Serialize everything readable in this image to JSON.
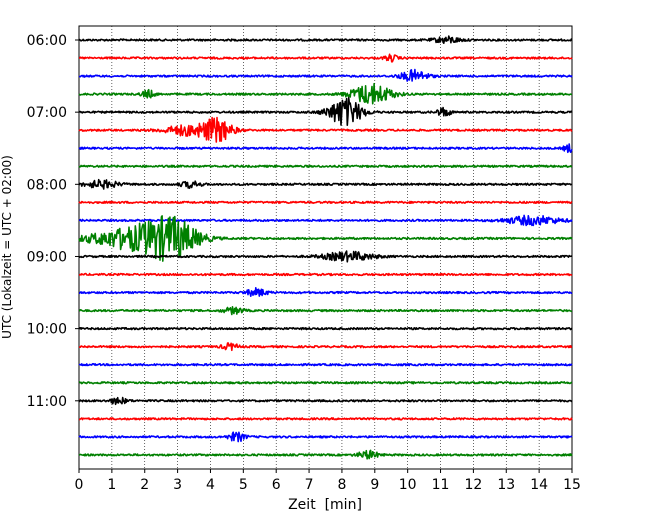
{
  "chart_data": {
    "type": "line",
    "title": "",
    "xlabel": "Zeit  [min]",
    "ylabel": "UTC (Lokalzeit = UTC + 02:00)",
    "xlim": [
      0,
      15
    ],
    "x_ticks": [
      "0",
      "1",
      "2",
      "3",
      "4",
      "5",
      "6",
      "7",
      "8",
      "9",
      "10",
      "11",
      "12",
      "13",
      "14",
      "15"
    ],
    "y_tick_labels": [
      "06:00",
      "07:00",
      "08:00",
      "09:00",
      "10:00",
      "11:00"
    ],
    "start_time": "06:00",
    "trace_interval_min": 15,
    "trace_count": 24,
    "grid": {
      "x_vertical_dotted": true
    },
    "trace_colors": [
      "#000000",
      "#ff0000",
      "#0000ff",
      "#008000"
    ],
    "events": [
      {
        "trace_start": "06:00",
        "minute": 11.2,
        "amplitude": 0.25,
        "duration_min": 0.8
      },
      {
        "trace_start": "06:15",
        "minute": 9.5,
        "amplitude": 0.25,
        "duration_min": 0.4
      },
      {
        "trace_start": "06:30",
        "minute": 10.2,
        "amplitude": 0.45,
        "duration_min": 0.8
      },
      {
        "trace_start": "06:45",
        "minute": 2.1,
        "amplitude": 0.3,
        "duration_min": 0.4
      },
      {
        "trace_start": "06:45",
        "minute": 8.9,
        "amplitude": 0.8,
        "duration_min": 1.2
      },
      {
        "trace_start": "07:00",
        "minute": 8.1,
        "amplitude": 1.1,
        "duration_min": 1.0
      },
      {
        "trace_start": "07:00",
        "minute": 11.1,
        "amplitude": 0.35,
        "duration_min": 0.4
      },
      {
        "trace_start": "07:15",
        "minute": 3.3,
        "amplitude": 0.4,
        "duration_min": 1.4
      },
      {
        "trace_start": "07:15",
        "minute": 4.2,
        "amplitude": 0.9,
        "duration_min": 0.9
      },
      {
        "trace_start": "07:30",
        "minute": 14.9,
        "amplitude": 0.3,
        "duration_min": 0.3
      },
      {
        "trace_start": "08:00",
        "minute": 0.7,
        "amplitude": 0.3,
        "duration_min": 1.0
      },
      {
        "trace_start": "08:00",
        "minute": 3.4,
        "amplitude": 0.25,
        "duration_min": 0.6
      },
      {
        "trace_start": "08:30",
        "minute": 13.8,
        "amplitude": 0.35,
        "duration_min": 1.6
      },
      {
        "trace_start": "08:45",
        "minute": 1.6,
        "amplitude": 0.8,
        "duration_min": 2.5
      },
      {
        "trace_start": "08:45",
        "minute": 2.8,
        "amplitude": 1.4,
        "duration_min": 1.6
      },
      {
        "trace_start": "09:00",
        "minute": 8.2,
        "amplitude": 0.35,
        "duration_min": 1.5
      },
      {
        "trace_start": "09:30",
        "minute": 5.4,
        "amplitude": 0.3,
        "duration_min": 0.6
      },
      {
        "trace_start": "09:45",
        "minute": 4.7,
        "amplitude": 0.25,
        "duration_min": 0.6
      },
      {
        "trace_start": "10:15",
        "minute": 4.6,
        "amplitude": 0.25,
        "duration_min": 0.5
      },
      {
        "trace_start": "11:00",
        "minute": 1.2,
        "amplitude": 0.25,
        "duration_min": 0.5
      },
      {
        "trace_start": "11:30",
        "minute": 4.8,
        "amplitude": 0.35,
        "duration_min": 0.5
      },
      {
        "trace_start": "11:45",
        "minute": 8.8,
        "amplitude": 0.3,
        "duration_min": 0.6
      }
    ]
  }
}
